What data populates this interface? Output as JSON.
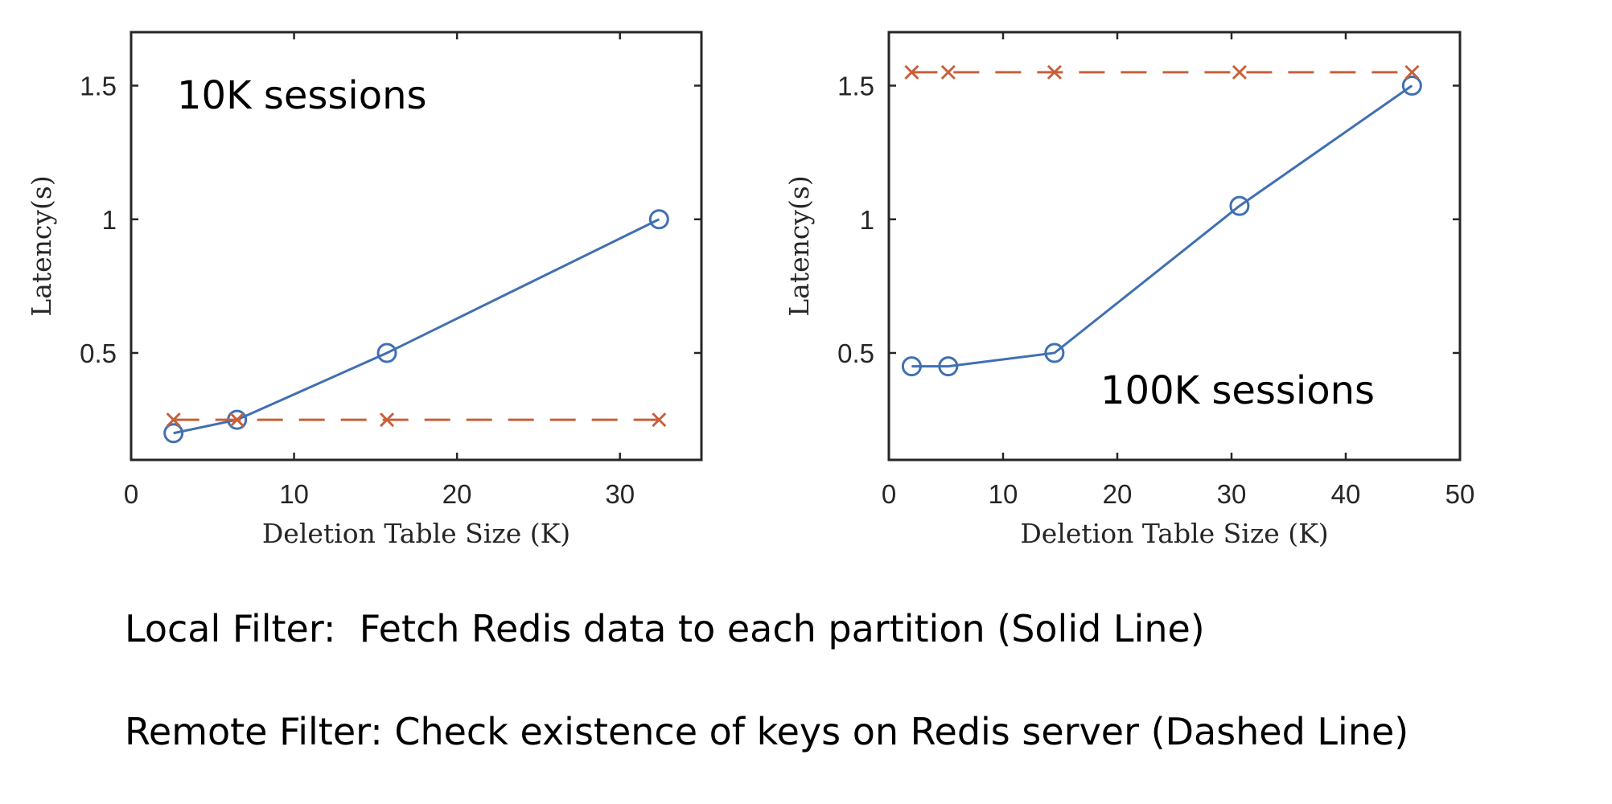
{
  "chart_data": [
    {
      "type": "line",
      "title": "",
      "xlabel": "Deletion Table Size (K)",
      "ylabel": "Latency(s)",
      "xlim": [
        0,
        35
      ],
      "ylim": [
        0.1,
        1.7
      ],
      "xticks": [
        0,
        10,
        20,
        30
      ],
      "yticks": [
        0.5,
        1,
        1.5
      ],
      "xtick_labels": [
        "0",
        "10",
        "20",
        "30"
      ],
      "ytick_labels": [
        "0.5",
        "1",
        "1.5"
      ],
      "annotation": "10K sessions",
      "grid": false,
      "series": [
        {
          "style": "solid",
          "marker": "circle",
          "color": "#4070b3",
          "x": [
            2.6,
            6.5,
            15.7,
            32.4
          ],
          "y": [
            0.2,
            0.25,
            0.5,
            1.0
          ]
        },
        {
          "style": "dashed",
          "marker": "x",
          "color": "#c8603a",
          "x": [
            2.6,
            6.5,
            15.7,
            32.4
          ],
          "y": [
            0.25,
            0.25,
            0.25,
            0.25
          ]
        }
      ]
    },
    {
      "type": "line",
      "title": "",
      "xlabel": "Deletion Table Size (K)",
      "ylabel": "Latency(s)",
      "xlim": [
        0,
        50
      ],
      "ylim": [
        0.1,
        1.7
      ],
      "xticks": [
        0,
        10,
        20,
        30,
        40,
        50
      ],
      "yticks": [
        0.5,
        1,
        1.5
      ],
      "xtick_labels": [
        "0",
        "10",
        "20",
        "30",
        "40",
        "50"
      ],
      "ytick_labels": [
        "0.5",
        "1",
        "1.5"
      ],
      "annotation": "100K sessions",
      "grid": false,
      "series": [
        {
          "style": "solid",
          "marker": "circle",
          "color": "#4070b3",
          "x": [
            2.0,
            5.2,
            14.5,
            30.7,
            45.8
          ],
          "y": [
            0.45,
            0.45,
            0.5,
            1.05,
            1.5
          ]
        },
        {
          "style": "dashed",
          "marker": "x",
          "color": "#c8603a",
          "x": [
            2.0,
            5.2,
            14.5,
            30.7,
            45.8
          ],
          "y": [
            1.55,
            1.55,
            1.55,
            1.55,
            1.55
          ]
        }
      ]
    }
  ],
  "captions": {
    "local": "Local Filter:  Fetch Redis data to each partition (Solid Line)",
    "remote": "Remote Filter: Check existence of keys on Redis server (Dashed Line)"
  }
}
